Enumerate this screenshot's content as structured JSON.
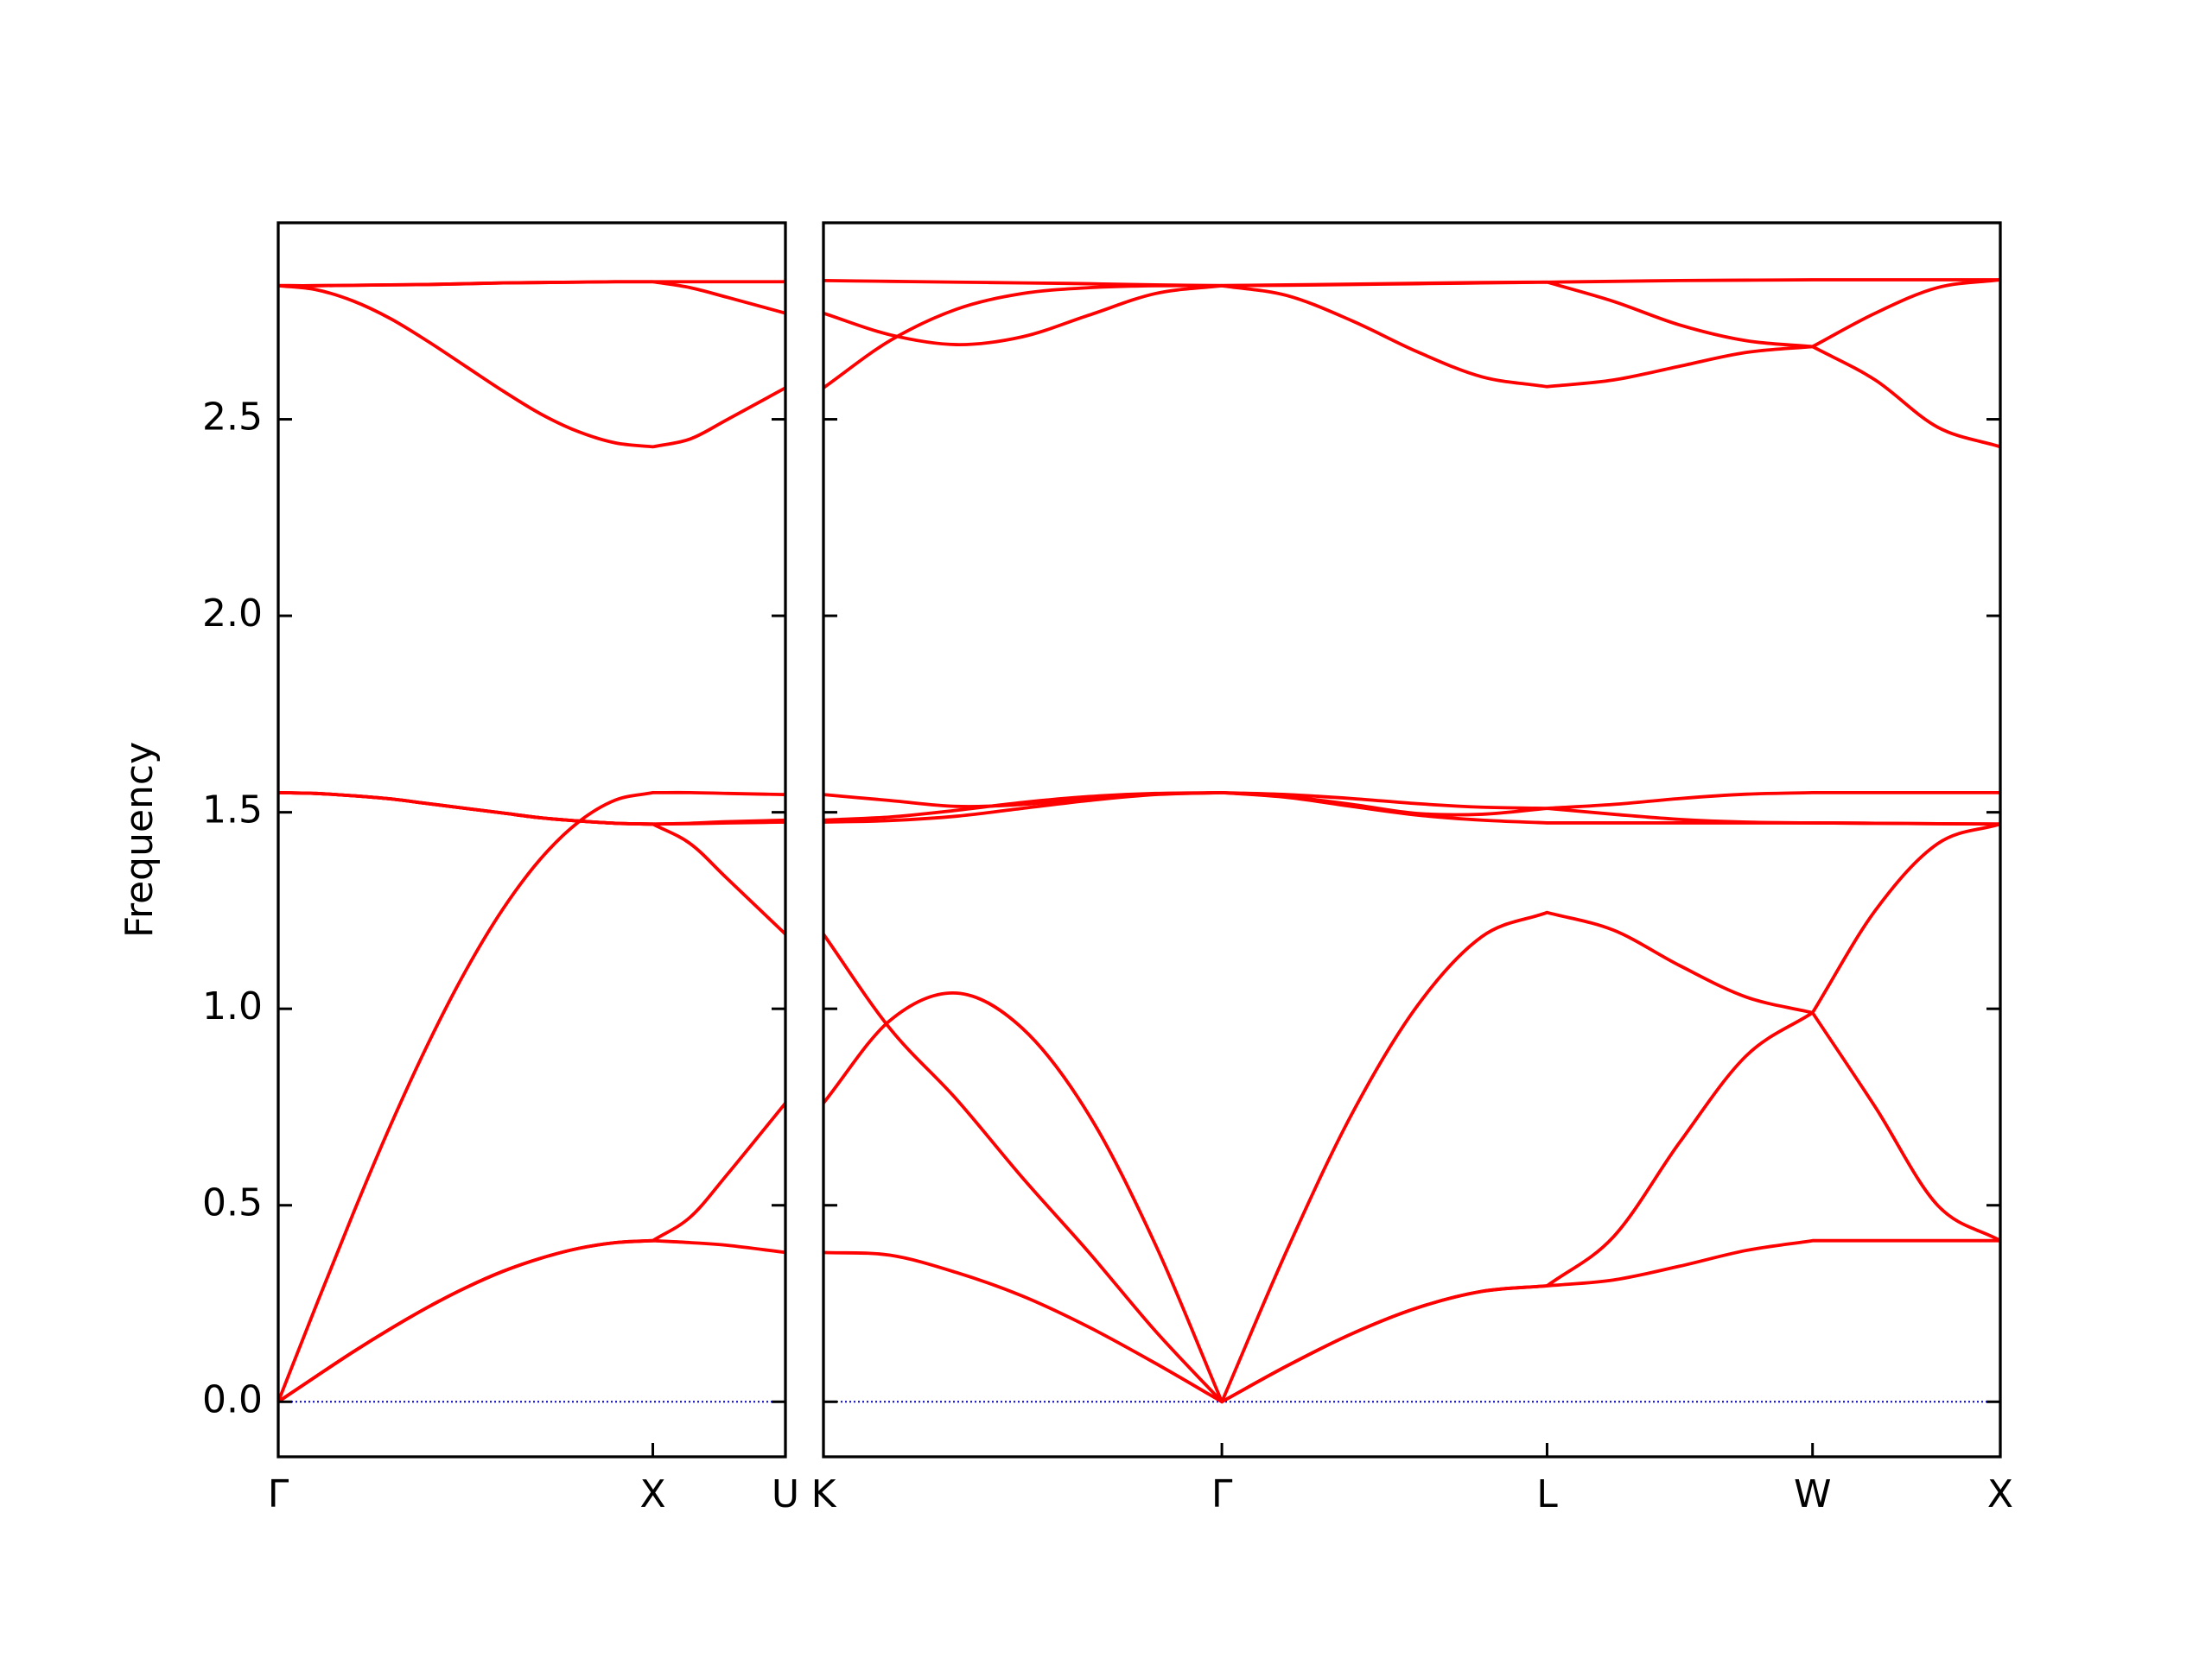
{
  "chart_data": [
    {
      "type": "line",
      "ylabel": "Frequency",
      "color": "#ff0000",
      "x": [
        0,
        0.1,
        0.2,
        0.3,
        0.4,
        0.5,
        0.6,
        0.7,
        0.8,
        0.9,
        1,
        1.1,
        1.2,
        1.354
      ],
      "series": [
        {
          "values": [
            0,
            0.064,
            0.127,
            0.186,
            0.241,
            0.29,
            0.332,
            0.365,
            0.39,
            0.405,
            0.41,
            0.405,
            0.398,
            0.38
          ]
        },
        {
          "values": [
            0,
            0.064,
            0.127,
            0.186,
            0.241,
            0.29,
            0.332,
            0.365,
            0.39,
            0.405,
            0.41,
            0.47,
            0.58,
            0.76
          ]
        },
        {
          "values": [
            0,
            0.242,
            0.479,
            0.704,
            0.911,
            1.096,
            1.254,
            1.381,
            1.474,
            1.531,
            1.55,
            1.55,
            1.548,
            1.545
          ]
        },
        {
          "values": [
            1.55,
            1.548,
            1.542,
            1.534,
            1.522,
            1.51,
            1.498,
            1.486,
            1.478,
            1.472,
            1.47,
            1.42,
            1.33,
            1.19
          ]
        },
        {
          "values": [
            1.55,
            1.548,
            1.542,
            1.534,
            1.522,
            1.51,
            1.498,
            1.486,
            1.478,
            1.472,
            1.47,
            1.471,
            1.473,
            1.475
          ]
        },
        {
          "values": [
            1.55,
            1.548,
            1.542,
            1.534,
            1.522,
            1.51,
            1.498,
            1.486,
            1.478,
            1.472,
            1.47,
            1.472,
            1.476,
            1.48
          ]
        },
        {
          "values": [
            2.84,
            2.84,
            2.841,
            2.842,
            2.843,
            2.845,
            2.847,
            2.848,
            2.849,
            2.85,
            2.85,
            2.85,
            2.85,
            2.85
          ]
        },
        {
          "values": [
            2.84,
            2.84,
            2.841,
            2.842,
            2.843,
            2.845,
            2.847,
            2.848,
            2.849,
            2.85,
            2.85,
            2.835,
            2.81,
            2.77
          ]
        },
        {
          "values": [
            2.84,
            2.83,
            2.801,
            2.756,
            2.698,
            2.635,
            2.572,
            2.514,
            2.469,
            2.44,
            2.43,
            2.45,
            2.5,
            2.58
          ]
        }
      ],
      "xlim": [
        0,
        1.354
      ],
      "xticks": [
        {
          "value": 0,
          "label": "Γ"
        },
        {
          "value": 1,
          "label": "X"
        },
        {
          "value": 1.354,
          "label": "U"
        }
      ],
      "ylim": [
        -0.14,
        3.0
      ],
      "yticks": [
        {
          "value": 0,
          "label": "0.0"
        },
        0.5,
        {
          "value": 1,
          "label": "1.0"
        },
        1.5,
        {
          "value": 2,
          "label": "2.0"
        },
        2.5
      ],
      "show_ytick_labels": true,
      "zero_line": true,
      "zero_line_color": "#0000cc"
    },
    {
      "type": "line",
      "color": "#ff0000",
      "x": [
        1.354,
        1.531,
        1.708,
        1.884,
        2.061,
        2.238,
        2.415,
        2.588,
        2.761,
        2.935,
        3.108,
        3.281,
        3.458,
        3.634,
        3.811,
        3.988,
        4.155,
        4.321,
        4.488
      ],
      "series": [
        {
          "values": [
            0.38,
            0.373,
            0.329,
            0.269,
            0.19,
            0.098,
            0,
            0.091,
            0.173,
            0.239,
            0.281,
            0.295,
            0.31,
            0.345,
            0.385,
            0.41,
            0.41,
            0.41,
            0.41
          ]
        },
        {
          "values": [
            1.19,
            0.95,
            0.77,
            0.57,
            0.38,
            0.18,
            0,
            0.091,
            0.173,
            0.239,
            0.281,
            0.295,
            0.42,
            0.66,
            0.88,
            0.99,
            0.75,
            0.5,
            0.41
          ]
        },
        {
          "values": [
            0.76,
            0.97,
            1.04,
            0.95,
            0.73,
            0.4,
            0,
            0.385,
            0.732,
            1.007,
            1.184,
            1.245,
            1.2,
            1.11,
            1.03,
            0.99,
            1.25,
            1.42,
            1.47
          ]
        },
        {
          "values": [
            1.545,
            1.53,
            1.515,
            1.52,
            1.535,
            1.546,
            1.55,
            1.545,
            1.535,
            1.522,
            1.513,
            1.51,
            1.52,
            1.535,
            1.546,
            1.55,
            1.55,
            1.55,
            1.55
          ]
        },
        {
          "values": [
            1.475,
            1.479,
            1.49,
            1.51,
            1.53,
            1.545,
            1.55,
            1.54,
            1.52,
            1.497,
            1.495,
            1.51,
            1.495,
            1.482,
            1.475,
            1.473,
            1.472,
            1.471,
            1.47
          ]
        },
        {
          "values": [
            1.48,
            1.488,
            1.505,
            1.525,
            1.54,
            1.548,
            1.55,
            1.538,
            1.515,
            1.493,
            1.48,
            1.473,
            1.473,
            1.473,
            1.473,
            1.473,
            1.472,
            1.471,
            1.47
          ]
        },
        {
          "values": [
            2.853,
            2.851,
            2.849,
            2.847,
            2.845,
            2.842,
            2.84,
            2.842,
            2.844,
            2.846,
            2.848,
            2.849,
            2.851,
            2.853,
            2.854,
            2.855,
            2.855,
            2.855,
            2.855
          ]
        },
        {
          "values": [
            2.77,
            2.715,
            2.69,
            2.71,
            2.765,
            2.82,
            2.84,
            2.841,
            2.843,
            2.845,
            2.847,
            2.849,
            2.8,
            2.74,
            2.7,
            2.685,
            2.77,
            2.835,
            2.855
          ]
        },
        {
          "values": [
            2.58,
            2.7,
            2.78,
            2.82,
            2.835,
            2.84,
            2.84,
            2.815,
            2.751,
            2.672,
            2.608,
            2.583,
            2.6,
            2.635,
            2.67,
            2.685,
            2.6,
            2.48,
            2.43
          ]
        }
      ],
      "xlim": [
        1.354,
        4.488
      ],
      "xticks": [
        {
          "value": 1.354,
          "label": "K"
        },
        {
          "value": 2.415,
          "label": "Γ"
        },
        {
          "value": 3.281,
          "label": "L"
        },
        {
          "value": 3.988,
          "label": "W"
        },
        {
          "value": 4.488,
          "label": "X"
        }
      ],
      "ylim": [
        -0.14,
        3.0
      ],
      "yticks": [
        0,
        0.5,
        1,
        1.5,
        2,
        2.5
      ],
      "show_ytick_labels": false,
      "zero_line": true,
      "zero_line_color": "#0000cc"
    }
  ]
}
